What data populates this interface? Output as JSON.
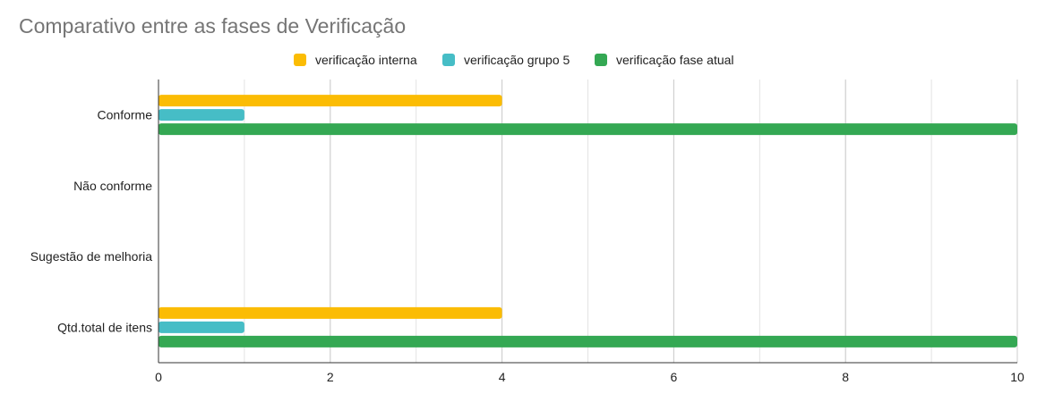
{
  "chart_data": {
    "type": "bar",
    "orientation": "horizontal",
    "title": "Comparativo entre as fases de Verificação",
    "categories": [
      "Conforme",
      "Não conforme",
      "Sugestão de melhoria",
      "Qtd.total de itens"
    ],
    "series": [
      {
        "name": "verificação interna",
        "color": "#fbbc04",
        "values": [
          4,
          0,
          0,
          4
        ]
      },
      {
        "name": "verificação grupo 5",
        "color": "#46bdc6",
        "values": [
          1,
          0,
          0,
          1
        ]
      },
      {
        "name": "verificação fase atual",
        "color": "#34a853",
        "values": [
          10,
          0,
          0,
          10
        ]
      }
    ],
    "xlim": [
      0,
      10
    ],
    "xticks": [
      0,
      2,
      4,
      6,
      8,
      10
    ],
    "grid": true,
    "legend_position": "top"
  }
}
